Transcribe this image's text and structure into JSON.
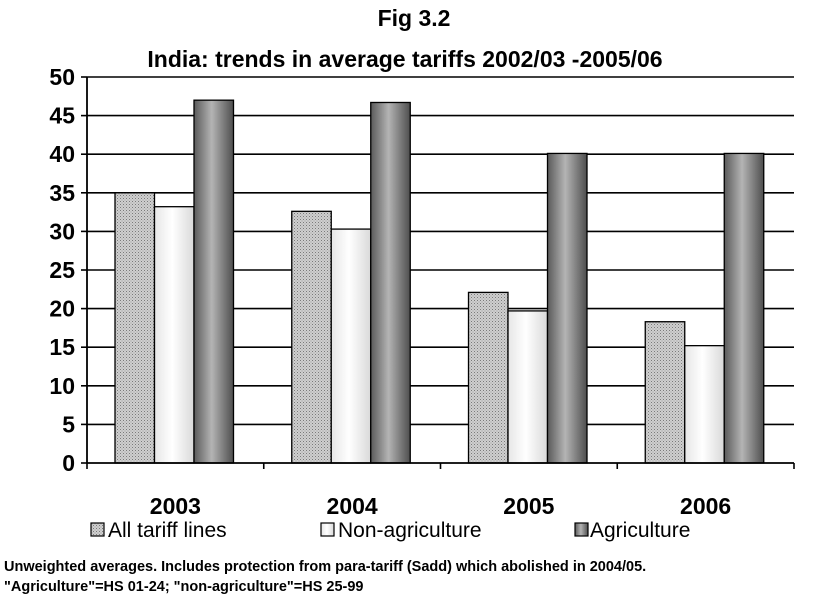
{
  "chart_data": {
    "type": "bar",
    "title": "Fig 3.2",
    "subtitle": "India: trends in average tariffs 2002/03 -2005/06",
    "xlabel": "",
    "ylabel": "",
    "categories": [
      "2003",
      "2004",
      "2005",
      "2006"
    ],
    "ylim": [
      0,
      50
    ],
    "yticks": [
      0,
      5,
      10,
      15,
      20,
      25,
      30,
      35,
      40,
      45,
      50
    ],
    "grid": true,
    "legend_position": "bottom",
    "series": [
      {
        "name": "All tariff lines",
        "values": [
          35.0,
          32.6,
          22.1,
          18.3
        ],
        "color": "#c8c8c8",
        "pattern": "dotted"
      },
      {
        "name": "Non-agriculture",
        "values": [
          33.2,
          30.3,
          19.7,
          15.2
        ],
        "color": "#ffffff",
        "pattern": "plain"
      },
      {
        "name": "Agriculture",
        "values": [
          47.0,
          46.7,
          40.1,
          40.1
        ],
        "color": "#808080",
        "pattern": "shaded"
      }
    ]
  },
  "notes": {
    "line1": "Unweighted averages. Includes protection from para-tariff (Sadd) which abolished in 2004/05.",
    "line2": "\"Agriculture\"=HS 01-24; \"non-agriculture\"=HS 25-99"
  }
}
